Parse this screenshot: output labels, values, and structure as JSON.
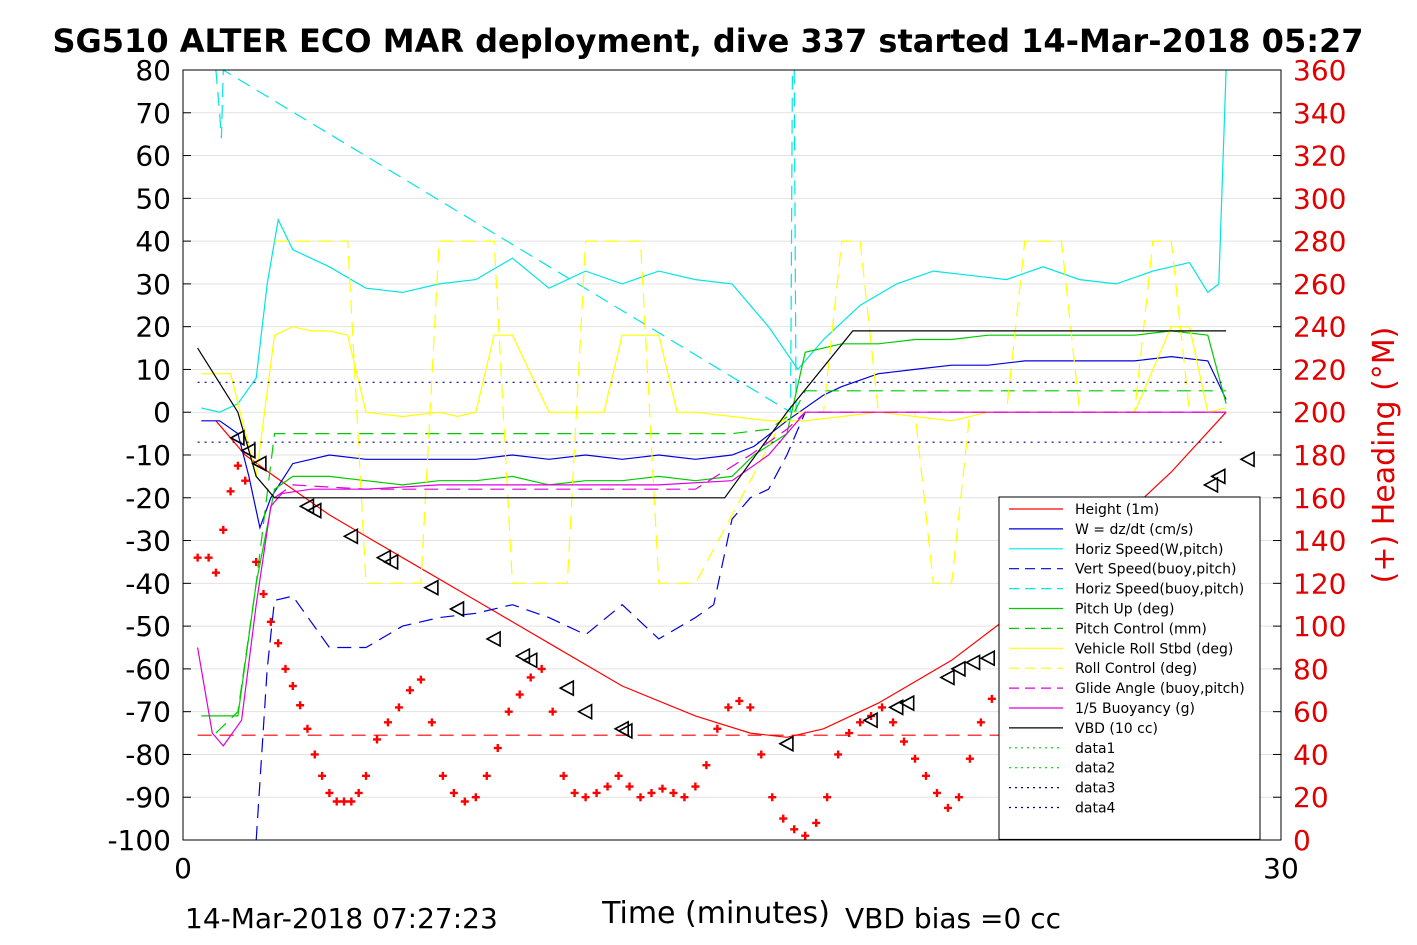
{
  "chart_data": {
    "type": "line",
    "title": "SG510 ALTER ECO MAR deployment, dive 337 started 14-Mar-2018 05:27",
    "xlabel": "Time (minutes)",
    "ylabel": "",
    "ylabel_right": "(+) Heading (°M)",
    "xlim": [
      0,
      30
    ],
    "ylim": [
      -100,
      80
    ],
    "ylim_right": [
      0,
      360
    ],
    "xticks": [
      0,
      30
    ],
    "yticks": [
      80,
      70,
      60,
      50,
      40,
      30,
      20,
      10,
      0,
      -10,
      -20,
      -30,
      -40,
      -50,
      -60,
      -70,
      -80,
      -90,
      -100
    ],
    "yticks_right": [
      360,
      340,
      320,
      300,
      280,
      260,
      240,
      220,
      200,
      180,
      160,
      140,
      120,
      100,
      80,
      60,
      40,
      20,
      0
    ],
    "grid": "horizontal",
    "legend_position": "right",
    "footer_left": "14-Mar-2018 07:27:23",
    "footer_right": "VBD bias =0 cc",
    "series": [
      {
        "name": "Height (1m)",
        "color": "#ff0000",
        "style": "solid",
        "x": [
          0.9,
          1.7,
          2.5,
          4.0,
          6.0,
          8.0,
          10.0,
          12.0,
          14.0,
          15.5,
          16.5,
          17.5,
          19.0,
          21.0,
          23.0,
          25.0,
          27.0,
          28.5
        ],
        "values": [
          -2,
          -10,
          -15,
          -24,
          -34,
          -44,
          -54,
          -64,
          -71,
          -75,
          -76,
          -74,
          -68,
          -58,
          -45,
          -30,
          -14,
          0
        ]
      },
      {
        "name": "W = dz/dt (cm/s)",
        "color": "#0000dd",
        "style": "solid",
        "x": [
          0.5,
          1.0,
          1.5,
          1.8,
          2.1,
          2.4,
          3.0,
          4.0,
          5.0,
          6.0,
          7.0,
          8.0,
          9.0,
          10.0,
          11.0,
          12.0,
          13.0,
          14.0,
          15.0,
          15.6,
          16.5,
          17.5,
          18.0,
          19.0,
          20.0,
          21.0,
          22.0,
          23.0,
          24.0,
          25.0,
          26.0,
          27.0,
          28.0,
          28.5
        ],
        "values": [
          -2,
          -2,
          -5,
          -15,
          -27,
          -20,
          -12,
          -10,
          -11,
          -11,
          -11,
          -11,
          -10,
          -11,
          -10,
          -11,
          -10,
          -11,
          -10,
          -8,
          -2,
          4,
          6,
          9,
          10,
          11,
          11,
          12,
          12,
          12,
          12,
          13,
          12,
          3
        ]
      },
      {
        "name": "Horiz Speed(W,pitch)",
        "color": "#00e5e5",
        "style": "solid",
        "x": [
          0.5,
          1.0,
          1.5,
          2.0,
          2.3,
          2.6,
          3.0,
          4.0,
          5.0,
          6.0,
          7.0,
          8.0,
          9.0,
          10.0,
          11.0,
          12.0,
          13.0,
          14.0,
          15.0,
          16.0,
          16.8,
          17.5,
          18.5,
          19.5,
          20.5,
          21.5,
          22.5,
          23.5,
          24.5,
          25.5,
          26.5,
          27.5,
          28.0,
          28.3,
          28.5
        ],
        "values": [
          1,
          0,
          2,
          8,
          30,
          45,
          38,
          34,
          29,
          28,
          30,
          31,
          36,
          29,
          33,
          30,
          33,
          31,
          30,
          20,
          10,
          17,
          25,
          30,
          33,
          32,
          31,
          34,
          31,
          30,
          33,
          35,
          28,
          30,
          80
        ]
      },
      {
        "name": "Vert Speed(buoy,pitch)",
        "color": "#0000dd",
        "style": "dashed",
        "x": [
          2.0,
          2.3,
          2.5,
          3.0,
          4.0,
          5.0,
          6.0,
          7.0,
          8.0,
          9.0,
          10.0,
          11.0,
          12.0,
          13.0,
          14.0,
          14.5,
          15.0,
          15.5,
          16.0,
          16.5,
          17.0
        ],
        "values": [
          -100,
          -60,
          -44,
          -43,
          -55,
          -55,
          -50,
          -48,
          -47,
          -45,
          -48,
          -52,
          -45,
          -53,
          -48,
          -45,
          -25,
          -20,
          -18,
          -10,
          0
        ]
      },
      {
        "name": "Horiz Speed(buoy,pitch)",
        "color": "#00e5e5",
        "style": "dashed",
        "x": [
          0.9,
          1.0,
          1.05,
          1.1,
          16.6,
          16.65,
          16.7,
          16.75
        ],
        "values": [
          80,
          70,
          64,
          80,
          0,
          80,
          80,
          0
        ]
      },
      {
        "name": "Pitch Up (deg)",
        "color": "#00cc00",
        "style": "solid",
        "x": [
          0.5,
          1.5,
          2.0,
          2.5,
          3.0,
          4.0,
          5.0,
          6.0,
          7.0,
          8.0,
          9.0,
          10.0,
          11.0,
          12.0,
          13.0,
          14.0,
          15.0,
          15.6,
          16.5,
          17.0,
          18.0,
          19.0,
          20.0,
          21.0,
          22.0,
          23.0,
          24.0,
          25.0,
          26.0,
          27.0,
          28.0,
          28.5
        ],
        "values": [
          -71,
          -71,
          -40,
          -18,
          -15,
          -15,
          -16,
          -17,
          -16,
          -16,
          -15,
          -17,
          -16,
          -16,
          -15,
          -16,
          -15,
          -10,
          -5,
          14,
          16,
          16,
          17,
          17,
          18,
          18,
          18,
          18,
          18,
          19,
          18,
          2
        ]
      },
      {
        "name": "Pitch Control (mm)",
        "color": "#00cc00",
        "style": "dashed",
        "x": [
          0.9,
          1.5,
          2.0,
          2.5,
          5.0,
          10.0,
          15.0,
          16.0,
          16.7,
          17.0,
          20.0,
          25.0,
          28.5
        ],
        "values": [
          -75,
          -70,
          -40,
          -5,
          -5,
          -5,
          -5,
          -4,
          0,
          5,
          5,
          5,
          5
        ]
      },
      {
        "name": "Vehicle Roll Stbd (deg)",
        "color": "#ffff00",
        "style": "solid",
        "x": [
          0.5,
          1.3,
          2.0,
          2.5,
          3.0,
          3.5,
          4.0,
          4.5,
          5.0,
          6.0,
          7.0,
          7.5,
          8.0,
          8.5,
          9.0,
          10.0,
          11.0,
          11.5,
          12.0,
          13.0,
          13.5,
          14.0,
          15.0,
          16.0,
          17.0,
          18.0,
          19.0,
          20.0,
          21.0,
          22.0,
          23.0,
          24.0,
          25.0,
          26.0,
          27.0,
          27.5,
          28.0,
          28.5
        ],
        "values": [
          9,
          9,
          -15,
          18,
          20,
          19,
          19,
          18,
          0,
          -1,
          0,
          -1,
          0,
          18,
          18,
          0,
          0,
          0,
          18,
          18,
          0,
          0,
          -1,
          -2,
          -2,
          -1,
          0,
          -1,
          -2,
          0,
          0,
          0,
          0,
          0,
          20,
          20,
          0,
          1
        ]
      },
      {
        "name": "Roll Control (deg)",
        "color": "#ffff00",
        "style": "dashed",
        "x": [
          2.5,
          3.0,
          3.5,
          4.0,
          4.5,
          5.0,
          5.5,
          6.0,
          6.5,
          7.0,
          7.5,
          8.0,
          8.5,
          9.0,
          9.5,
          10.0,
          10.5,
          11.0,
          11.5,
          12.0,
          12.5,
          13.0,
          13.5,
          14.0,
          16.5,
          17.5,
          18.0,
          18.5,
          19.0,
          19.5,
          20.0,
          20.5,
          21.0,
          21.5,
          22.0,
          22.5,
          23.0,
          23.5,
          24.0,
          24.5,
          25.0,
          25.5,
          26.0,
          26.5,
          27.0,
          27.5,
          28.0
        ],
        "values": [
          40,
          40,
          40,
          40,
          40,
          -40,
          -40,
          -40,
          -40,
          40,
          40,
          40,
          40,
          -40,
          -40,
          -40,
          -40,
          40,
          40,
          40,
          40,
          -40,
          -40,
          -40,
          0,
          0,
          40,
          40,
          0,
          0,
          0,
          -40,
          -40,
          0,
          0,
          0,
          40,
          40,
          40,
          0,
          0,
          0,
          0,
          40,
          40,
          0,
          0
        ]
      },
      {
        "name": "Glide Angle (buoy,pitch)",
        "color": "#dd00dd",
        "style": "dashed",
        "x": [
          2.5,
          3.0,
          5.0,
          10.0,
          14.0,
          15.5,
          16.5,
          17.0,
          28.5
        ],
        "values": [
          -20,
          -17,
          -18,
          -18,
          -18,
          -10,
          -4,
          0,
          0
        ]
      },
      {
        "name": "1/5 Buoyancy (g)",
        "color": "#dd00dd",
        "style": "solid",
        "x": [
          0.4,
          0.8,
          1.1,
          1.6,
          2.0,
          2.4,
          2.7,
          3.5,
          5.0,
          7.0,
          9.0,
          11.0,
          13.0,
          15.0,
          16.0,
          16.5,
          17.0,
          28.5
        ],
        "values": [
          -55,
          -75,
          -78,
          -72,
          -45,
          -22,
          -19,
          -18,
          -18,
          -17,
          -17,
          -17,
          -17,
          -16,
          -10,
          -5,
          0,
          0
        ]
      },
      {
        "name": "VBD (10 cc)",
        "color": "#000000",
        "style": "solid",
        "x": [
          0.4,
          1.5,
          2.0,
          2.5,
          14.8,
          16.5,
          18.3,
          18.7,
          28.5
        ],
        "values": [
          15,
          0,
          -15,
          -20,
          -20,
          0,
          19,
          19,
          19
        ]
      },
      {
        "name": "data1",
        "color": "#00cc00",
        "style": "dotted",
        "x": [],
        "values": []
      },
      {
        "name": "data2",
        "color": "#00cc00",
        "style": "dotted",
        "x": [],
        "values": []
      },
      {
        "name": "data3",
        "color": "#000080",
        "style": "dotted",
        "x": [
          0.4,
          28.5
        ],
        "values": [
          7,
          7
        ]
      },
      {
        "name": "data4",
        "color": "#000080",
        "style": "dotted",
        "x": [
          0.4,
          28.5
        ],
        "values": [
          -7,
          -7
        ]
      }
    ],
    "reference_lines": [
      {
        "axis": "y",
        "value": -75.5,
        "x_range": [
          0.4,
          25.5
        ],
        "color": "#ff0000",
        "style": "dashed"
      }
    ],
    "markers": {
      "style": "triangle-left",
      "color": "#000000",
      "x": [
        1.5,
        1.8,
        2.1,
        3.4,
        3.6,
        4.6,
        5.5,
        5.7,
        6.8,
        7.5,
        8.5,
        9.3,
        9.5,
        10.5,
        11.0,
        12.0,
        12.1,
        16.5,
        18.8,
        19.5,
        19.8,
        20.9,
        21.2,
        21.6,
        22.0,
        25.0,
        25.3,
        26.9,
        28.1,
        28.3,
        29.1
      ],
      "values": [
        -6,
        -9,
        -12,
        -22,
        -23,
        -29,
        -34,
        -35,
        -41,
        -46,
        -53,
        -57,
        -58,
        -64.5,
        -70,
        -74,
        -74.5,
        -77.5,
        -72,
        -69,
        -68,
        -62,
        -60,
        -58.5,
        -57.5,
        -51,
        -49.5,
        -42,
        -17,
        -15,
        -11
      ]
    },
    "heading": {
      "name": "(+) Heading",
      "color": "#ff0000",
      "marker": "+",
      "axis": "right",
      "x": [
        0.4,
        0.7,
        0.9,
        1.1,
        1.3,
        1.5,
        1.7,
        2.0,
        2.2,
        2.4,
        2.6,
        2.8,
        3.0,
        3.2,
        3.4,
        3.6,
        3.8,
        4.0,
        4.2,
        4.4,
        4.6,
        4.8,
        5.0,
        5.3,
        5.6,
        5.9,
        6.2,
        6.5,
        6.8,
        7.1,
        7.4,
        7.7,
        8.0,
        8.3,
        8.6,
        8.9,
        9.2,
        9.5,
        9.8,
        10.1,
        10.4,
        10.7,
        11.0,
        11.3,
        11.6,
        11.9,
        12.2,
        12.5,
        12.8,
        13.1,
        13.4,
        13.7,
        14.0,
        14.3,
        14.6,
        14.9,
        15.2,
        15.5,
        15.8,
        16.1,
        16.4,
        16.7,
        17.0,
        17.3,
        17.6,
        17.9,
        18.2,
        18.5,
        18.8,
        19.1,
        19.4,
        19.7,
        20.0,
        20.3,
        20.6,
        20.9,
        21.2,
        21.5,
        21.8,
        22.1,
        22.4,
        22.7,
        23.0,
        23.3,
        23.6,
        23.9,
        24.2,
        24.5,
        24.8,
        25.1,
        25.4,
        25.7,
        26.0,
        26.3,
        26.6,
        26.9,
        27.2,
        27.5
      ],
      "values": [
        132,
        132,
        125,
        145,
        163,
        175,
        168,
        130,
        115,
        102,
        92,
        80,
        72,
        63,
        52,
        40,
        30,
        22,
        18,
        18,
        18,
        22,
        30,
        47,
        55,
        62,
        70,
        75,
        55,
        30,
        22,
        18,
        20,
        30,
        43,
        60,
        68,
        76,
        80,
        60,
        30,
        22,
        20,
        22,
        25,
        30,
        25,
        20,
        22,
        24,
        22,
        20,
        25,
        35,
        52,
        62,
        65,
        62,
        40,
        20,
        10,
        5,
        2,
        8,
        20,
        40,
        50,
        55,
        58,
        62,
        55,
        46,
        38,
        30,
        22,
        15,
        20,
        38,
        55,
        66,
        68,
        62,
        54,
        47,
        42,
        37,
        32,
        26,
        23,
        20,
        18,
        17,
        15,
        14,
        12,
        10,
        8,
        6
      ]
    }
  }
}
